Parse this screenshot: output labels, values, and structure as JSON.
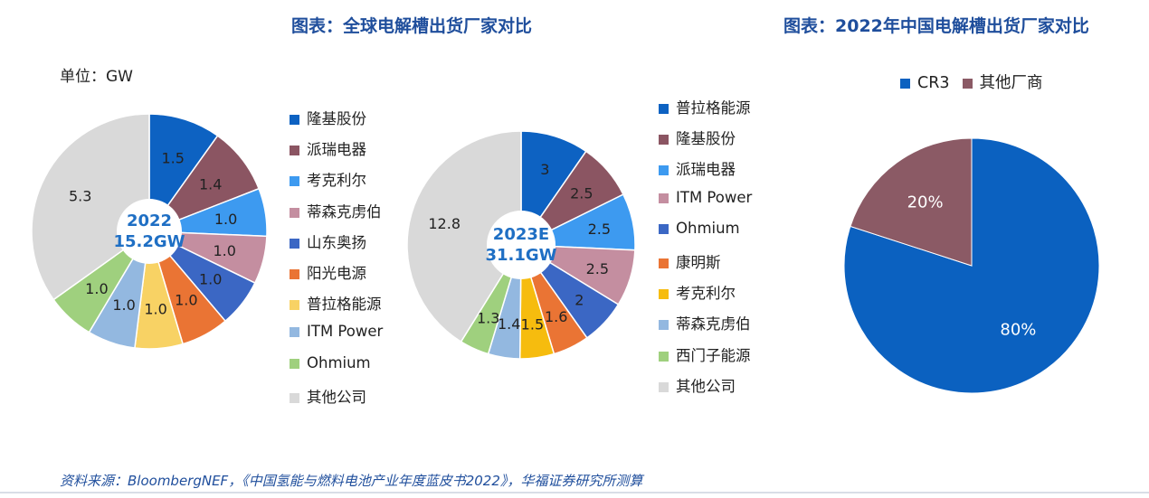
{
  "titles": {
    "left": "图表：全球电解槽出货厂家对比",
    "right": "图表：2022年中国电解槽出货厂家对比"
  },
  "unit": "单位：GW",
  "source": "资料来源：BloombergNEF，《中国氢能与燃料电池产业年度蓝皮书2022》，华福证券研究所测算",
  "chart_data": [
    {
      "type": "pie",
      "center_label": [
        "2022",
        "15.2GW"
      ],
      "unit": "GW",
      "labels": [
        "隆基股份",
        "派瑞电器",
        "考克利尔",
        "蒂森克虏伯",
        "山东奥扬",
        "阳光电源",
        "普拉格能源",
        "ITM Power",
        "Ohmium",
        "其他公司"
      ],
      "values": [
        1.5,
        1.4,
        1.0,
        1.0,
        1.0,
        1.0,
        1.0,
        1.0,
        1.0,
        5.3
      ],
      "value_labels": [
        "1.5",
        "1.4",
        "1.0",
        "1.0",
        "1.0",
        "1.0",
        "1.0",
        "1.0",
        "1.0",
        "5.3"
      ],
      "colors": [
        "#0d62c2",
        "#8b5562",
        "#3d9af0",
        "#c48ea0",
        "#3b67c4",
        "#ea7434",
        "#f8d264",
        "#93b8e0",
        "#9fd07e",
        "#d9d9d9"
      ]
    },
    {
      "type": "pie",
      "center_label": [
        "2023E",
        "31.1GW"
      ],
      "unit": "GW",
      "labels": [
        "普拉格能源",
        "隆基股份",
        "派瑞电器",
        "ITM Power",
        "Ohmium",
        "康明斯",
        "考克利尔",
        "蒂森克虏伯",
        "西门子能源",
        "其他公司"
      ],
      "values": [
        3,
        2.5,
        2.5,
        2.5,
        2,
        1.6,
        1.5,
        1.4,
        1.3,
        12.8
      ],
      "value_labels": [
        "3",
        "2.5",
        "2.5",
        "2.5",
        "2",
        "1.6",
        "1.5",
        "1.4",
        "1.3",
        "12.8"
      ],
      "colors": [
        "#0d62c2",
        "#8b5562",
        "#3d9af0",
        "#c48ea0",
        "#3b67c4",
        "#ea7434",
        "#f6bc0e",
        "#93b8e0",
        "#9fd07e",
        "#d9d9d9"
      ]
    },
    {
      "type": "pie",
      "labels": [
        "CR3",
        "其他厂商"
      ],
      "values": [
        80,
        20
      ],
      "value_labels": [
        "80%",
        "20%"
      ],
      "colors": [
        "#0b61c0",
        "#8b5a65"
      ]
    }
  ]
}
